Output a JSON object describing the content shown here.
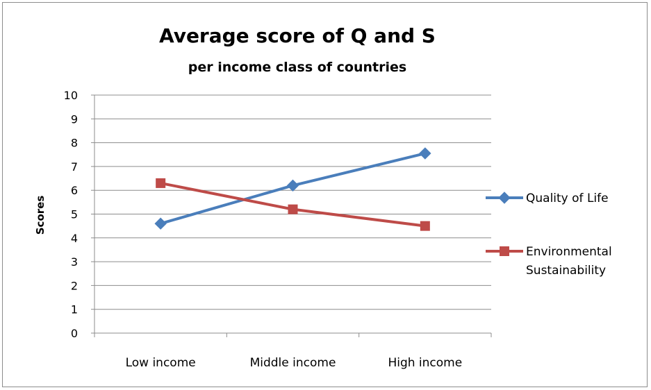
{
  "chart_data": {
    "type": "line",
    "title": "Average score of Q and S",
    "subtitle": "per income class of countries",
    "xlabel": "",
    "ylabel": "Scores",
    "categories": [
      "Low income",
      "Middle income",
      "High income"
    ],
    "ylim": [
      0,
      10
    ],
    "yticks": [
      0,
      1,
      2,
      3,
      4,
      5,
      6,
      7,
      8,
      9,
      10
    ],
    "grid": true,
    "legend_position": "right",
    "series": [
      {
        "name": "Quality of Life",
        "values": [
          4.6,
          6.2,
          7.55
        ],
        "color": "#4a7ebb",
        "marker": "diamond"
      },
      {
        "name": "Environmental Sustainability",
        "values": [
          6.3,
          5.2,
          4.5
        ],
        "color": "#be4b48",
        "marker": "square"
      }
    ]
  }
}
